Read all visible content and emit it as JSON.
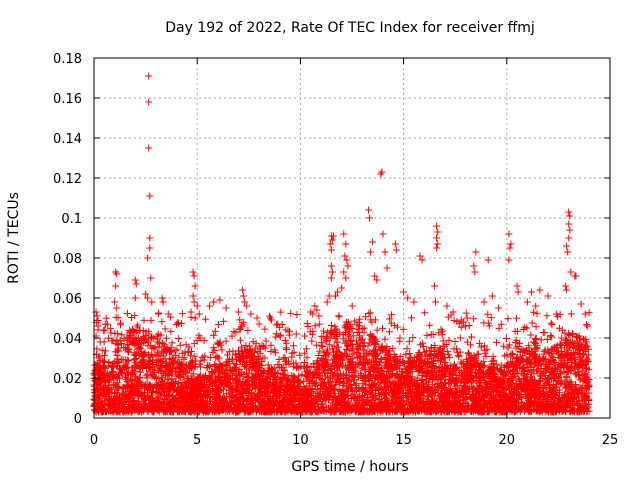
{
  "chart_data": {
    "type": "scatter",
    "title": "Day 192 of 2022, Rate Of TEC Index for receiver ffmj",
    "xlabel": "GPS time / hours",
    "ylabel": "ROTI / TECUs",
    "xlim": [
      0,
      25
    ],
    "ylim": [
      0,
      0.18
    ],
    "x_ticks": [
      0,
      5,
      10,
      15,
      20,
      25
    ],
    "y_ticks": [
      0,
      0.02,
      0.04,
      0.06,
      0.08,
      0.1,
      0.12,
      0.14,
      0.16,
      0.18
    ],
    "x_tick_labels": [
      "0",
      "5",
      "10",
      "15",
      "20",
      "25"
    ],
    "y_tick_labels": [
      "0",
      "0.02",
      "0.04",
      "0.06",
      "0.08",
      "0.1",
      "0.12",
      "0.14",
      "0.16",
      "0.18"
    ],
    "grid": true,
    "marker": "+",
    "marker_color": "#ff0000",
    "series": [
      {
        "name": "ROTI",
        "color": "#ff0000",
        "points": [
          [
            2.65,
            0.171
          ],
          [
            2.65,
            0.158
          ],
          [
            2.65,
            0.135
          ],
          [
            2.7,
            0.111
          ],
          [
            2.7,
            0.09
          ],
          [
            2.7,
            0.085
          ],
          [
            2.6,
            0.08
          ],
          [
            2.75,
            0.07
          ],
          [
            2.6,
            0.06
          ],
          [
            2.8,
            0.058
          ],
          [
            13.95,
            0.123
          ],
          [
            13.9,
            0.122
          ],
          [
            13.3,
            0.104
          ],
          [
            13.35,
            0.1
          ],
          [
            14.0,
            0.092
          ],
          [
            14.1,
            0.083
          ],
          [
            14.2,
            0.075
          ],
          [
            14.6,
            0.087
          ],
          [
            14.65,
            0.084
          ],
          [
            16.6,
            0.096
          ],
          [
            16.65,
            0.093
          ],
          [
            16.6,
            0.09
          ],
          [
            16.65,
            0.087
          ],
          [
            16.6,
            0.085
          ],
          [
            16.5,
            0.066
          ],
          [
            16.55,
            0.058
          ],
          [
            15.8,
            0.081
          ],
          [
            15.9,
            0.079
          ],
          [
            20.1,
            0.092
          ],
          [
            20.2,
            0.087
          ],
          [
            20.15,
            0.085
          ],
          [
            20.1,
            0.079
          ],
          [
            20.5,
            0.066
          ],
          [
            20.55,
            0.063
          ],
          [
            19.1,
            0.079
          ],
          [
            18.5,
            0.083
          ],
          [
            18.4,
            0.076
          ],
          [
            18.45,
            0.073
          ],
          [
            23.0,
            0.103
          ],
          [
            23.05,
            0.101
          ],
          [
            23.0,
            0.097
          ],
          [
            23.05,
            0.094
          ],
          [
            23.0,
            0.09
          ],
          [
            22.9,
            0.086
          ],
          [
            22.95,
            0.083
          ],
          [
            23.1,
            0.073
          ],
          [
            23.3,
            0.071
          ],
          [
            23.35,
            0.071
          ],
          [
            22.85,
            0.066
          ],
          [
            22.9,
            0.064
          ],
          [
            22.0,
            0.061
          ],
          [
            21.6,
            0.064
          ],
          [
            21.2,
            0.063
          ],
          [
            11.5,
            0.091
          ],
          [
            11.55,
            0.089
          ],
          [
            11.6,
            0.091
          ],
          [
            11.45,
            0.087
          ],
          [
            11.5,
            0.084
          ],
          [
            11.5,
            0.076
          ],
          [
            11.55,
            0.073
          ],
          [
            11.5,
            0.07
          ],
          [
            11.4,
            0.061
          ],
          [
            11.3,
            0.058
          ],
          [
            12.1,
            0.092
          ],
          [
            12.2,
            0.087
          ],
          [
            12.15,
            0.081
          ],
          [
            12.25,
            0.079
          ],
          [
            12.3,
            0.076
          ],
          [
            12.1,
            0.073
          ],
          [
            12.2,
            0.07
          ],
          [
            12.0,
            0.065
          ],
          [
            11.8,
            0.063
          ],
          [
            11.7,
            0.061
          ],
          [
            13.5,
            0.088
          ],
          [
            13.4,
            0.083
          ],
          [
            13.6,
            0.071
          ],
          [
            13.7,
            0.069
          ],
          [
            1.05,
            0.073
          ],
          [
            1.1,
            0.072
          ],
          [
            1.05,
            0.066
          ],
          [
            1.0,
            0.058
          ],
          [
            1.1,
            0.055
          ],
          [
            2.0,
            0.069
          ],
          [
            2.05,
            0.067
          ],
          [
            2.0,
            0.06
          ],
          [
            2.5,
            0.062
          ],
          [
            3.3,
            0.06
          ],
          [
            3.35,
            0.058
          ],
          [
            3.6,
            0.052
          ],
          [
            4.8,
            0.073
          ],
          [
            4.85,
            0.071
          ],
          [
            4.9,
            0.066
          ],
          [
            4.8,
            0.061
          ],
          [
            4.85,
            0.058
          ],
          [
            5.0,
            0.056
          ],
          [
            4.7,
            0.053
          ],
          [
            4.9,
            0.05
          ],
          [
            5.1,
            0.052
          ],
          [
            5.6,
            0.056
          ],
          [
            5.8,
            0.058
          ],
          [
            6.1,
            0.059
          ],
          [
            6.4,
            0.055
          ],
          [
            7.2,
            0.064
          ],
          [
            7.25,
            0.061
          ],
          [
            7.3,
            0.058
          ],
          [
            7.4,
            0.056
          ],
          [
            7.0,
            0.053
          ],
          [
            7.6,
            0.052
          ],
          [
            7.9,
            0.05
          ],
          [
            8.0,
            0.047
          ],
          [
            8.5,
            0.051
          ],
          [
            8.55,
            0.05
          ],
          [
            8.6,
            0.049
          ],
          [
            8.9,
            0.047
          ],
          [
            10.7,
            0.056
          ],
          [
            10.8,
            0.054
          ],
          [
            10.6,
            0.052
          ],
          [
            10.9,
            0.051
          ],
          [
            0.1,
            0.053
          ],
          [
            0.15,
            0.051
          ],
          [
            0.2,
            0.046
          ],
          [
            0.1,
            0.041
          ],
          [
            0.3,
            0.038
          ],
          [
            9.4,
            0.044
          ],
          [
            9.8,
            0.042
          ],
          [
            10.2,
            0.041
          ],
          [
            15.0,
            0.063
          ],
          [
            15.2,
            0.06
          ],
          [
            15.5,
            0.058
          ],
          [
            17.1,
            0.056
          ],
          [
            17.4,
            0.053
          ],
          [
            17.8,
            0.049
          ],
          [
            18.0,
            0.046
          ],
          [
            18.9,
            0.058
          ],
          [
            19.3,
            0.061
          ],
          [
            19.6,
            0.055
          ],
          [
            21.0,
            0.058
          ],
          [
            21.4,
            0.056
          ],
          [
            22.4,
            0.052
          ],
          [
            23.6,
            0.057
          ],
          [
            23.8,
            0.052
          ]
        ]
      }
    ]
  }
}
